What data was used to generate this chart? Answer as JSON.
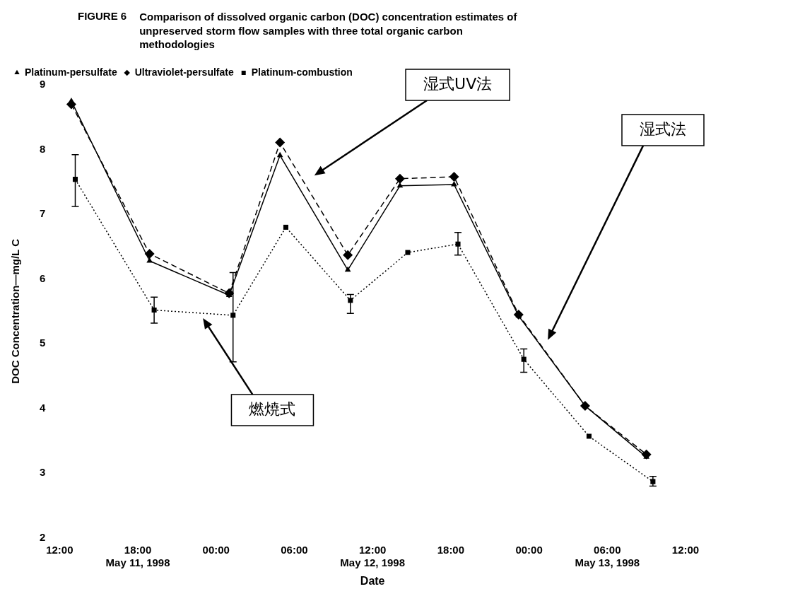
{
  "chart_data": {
    "type": "line",
    "title": "Comparison of dissolved organic carbon (DOC) concentration estimates of unpreserved storm flow samples with three total organic carbon methodologies",
    "xlabel": "Date",
    "ylabel": "DOC Concentration—mg/L C",
    "xlim": [
      "1998-05-11T12:00",
      "1998-05-13T12:00"
    ],
    "ylim": [
      2,
      9
    ],
    "xticks": [
      {
        "value": "1998-05-11T12:00",
        "label": "12:00"
      },
      {
        "value": "1998-05-11T18:00",
        "label": "18:00\nMay 11, 1998"
      },
      {
        "value": "1998-05-12T00:00",
        "label": "00:00"
      },
      {
        "value": "1998-05-12T06:00",
        "label": "06:00"
      },
      {
        "value": "1998-05-12T12:00",
        "label": "12:00\nMay 12, 1998"
      },
      {
        "value": "1998-05-12T18:00",
        "label": "18:00"
      },
      {
        "value": "1998-05-13T00:00",
        "label": "00:00"
      },
      {
        "value": "1998-05-13T06:00",
        "label": "06:00\nMay 13, 1998"
      },
      {
        "value": "1998-05-13T12:00",
        "label": "12:00"
      }
    ],
    "yticks": [
      2,
      3,
      4,
      5,
      6,
      7,
      8,
      9
    ],
    "grid": false,
    "legend": "top left",
    "series": [
      {
        "name": "Platinum-persulfate",
        "color": "#000000",
        "marker": "triangle",
        "line_style": "solid",
        "x": [
          "1998-05-11T12:54",
          "1998-05-11T18:54",
          "1998-05-12T01:00",
          "1998-05-12T04:54",
          "1998-05-12T10:06",
          "1998-05-12T14:06",
          "1998-05-12T18:15",
          "1998-05-12T23:12",
          "1998-05-13T04:18",
          "1998-05-13T09:00"
        ],
        "values": [
          8.75,
          6.28,
          5.75,
          7.91,
          6.14,
          7.44,
          7.46,
          5.43,
          4.04,
          3.25
        ]
      },
      {
        "name": "Ultraviolet-persulfate",
        "color": "#000000",
        "marker": "diamond",
        "line_style": "dashed",
        "x": [
          "1998-05-11T12:54",
          "1998-05-11T18:54",
          "1998-05-12T01:00",
          "1998-05-12T04:54",
          "1998-05-12T10:06",
          "1998-05-12T14:06",
          "1998-05-12T18:15",
          "1998-05-12T23:12",
          "1998-05-13T04:18",
          "1998-05-13T09:00"
        ],
        "values": [
          8.7,
          6.39,
          5.78,
          8.11,
          6.37,
          7.55,
          7.58,
          5.45,
          4.04,
          3.29
        ]
      },
      {
        "name": "Platinum-combustion",
        "color": "#000000",
        "marker": "square",
        "line_style": "dotted",
        "x": [
          "1998-05-11T13:12",
          "1998-05-11T19:15",
          "1998-05-12T01:18",
          "1998-05-12T05:21",
          "1998-05-12T10:18",
          "1998-05-12T14:42",
          "1998-05-12T18:33",
          "1998-05-12T23:36",
          "1998-05-13T04:36",
          "1998-05-13T09:30"
        ],
        "values": [
          7.54,
          5.52,
          5.44,
          6.8,
          5.67,
          6.41,
          6.54,
          4.76,
          3.57,
          2.87
        ],
        "errors": [
          [
            7.12,
            7.92
          ],
          [
            5.32,
            5.72
          ],
          [
            4.72,
            6.1
          ],
          null,
          [
            5.47,
            5.76
          ],
          null,
          [
            6.37,
            6.72
          ],
          [
            4.56,
            4.92
          ],
          null,
          [
            2.8,
            2.95
          ]
        ]
      }
    ],
    "annotations": [
      "FIGURE 6",
      "湿式UV法",
      "湿式法",
      "燃焼式"
    ]
  }
}
